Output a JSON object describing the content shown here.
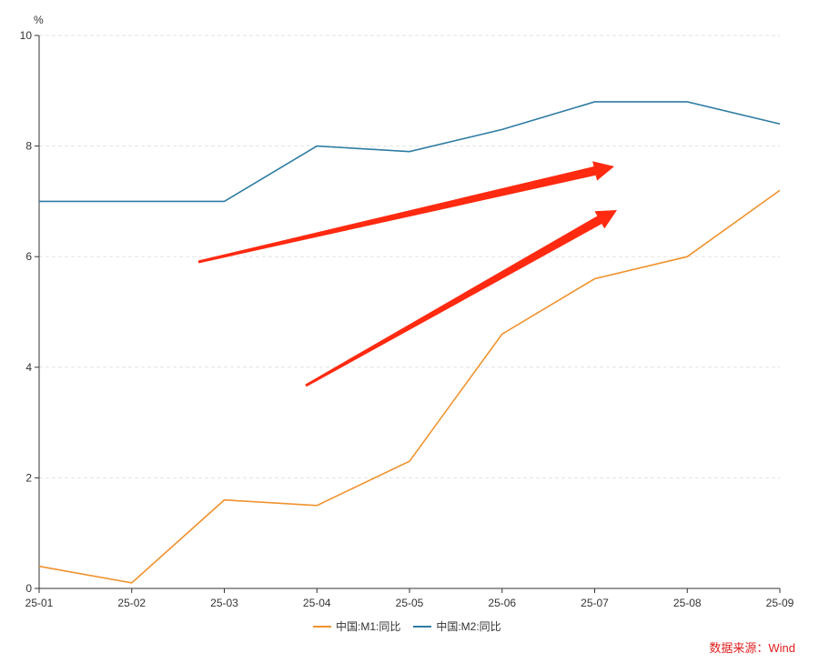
{
  "chart_data": {
    "type": "line",
    "title": "",
    "xlabel": "",
    "ylabel": "%",
    "categories": [
      "25-01",
      "25-02",
      "25-03",
      "25-04",
      "25-05",
      "25-06",
      "25-07",
      "25-08",
      "25-09"
    ],
    "ylim": [
      0,
      10
    ],
    "yticks": [
      0,
      2,
      4,
      6,
      8,
      10
    ],
    "grid": true,
    "legend_position": "bottom",
    "series": [
      {
        "name": "中国:M1:同比",
        "color": "#f0922e",
        "values": [
          0.4,
          0.1,
          1.6,
          1.5,
          2.3,
          4.6,
          5.6,
          6.0,
          7.2
        ]
      },
      {
        "name": "中国:M2:同比",
        "color": "#2e7ca3",
        "values": [
          7.0,
          7.0,
          7.0,
          8.0,
          7.9,
          8.3,
          8.8,
          8.8,
          8.4
        ]
      }
    ],
    "annotations": {
      "arrow_color": "#ff2a10",
      "arrows": 2
    }
  },
  "source": "数据来源：Wind"
}
